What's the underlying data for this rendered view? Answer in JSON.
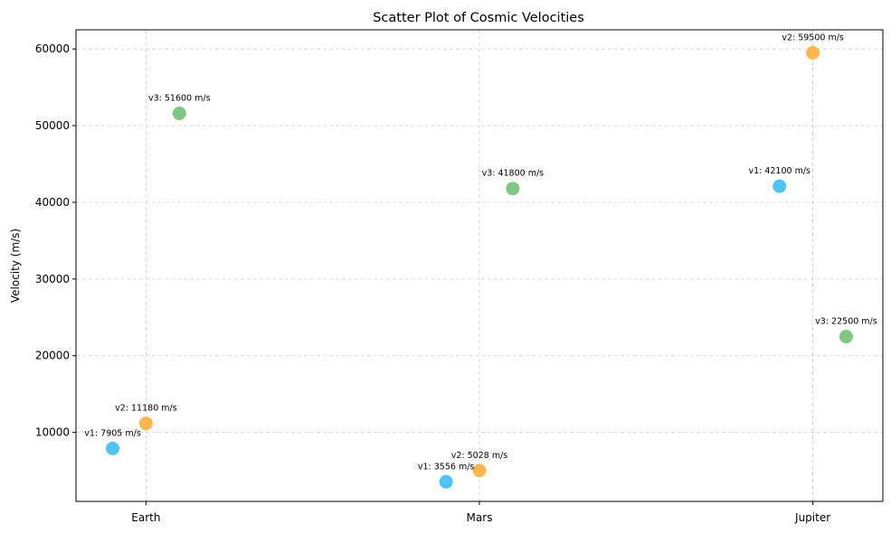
{
  "chart_data": {
    "type": "scatter",
    "title": "Scatter Plot of Cosmic Velocities",
    "xlabel": "",
    "ylabel": "Velocity (m/s)",
    "categories": [
      "Earth",
      "Mars",
      "Jupiter"
    ],
    "ylim": [
      1000,
      62500
    ],
    "yticks": [
      10000,
      20000,
      30000,
      40000,
      50000,
      60000
    ],
    "grid": true,
    "series": [
      {
        "color": "#4fc3f7",
        "offset": -0.1,
        "values": [
          7905,
          3556,
          42100
        ],
        "labels": [
          "v1: 7905 m/s",
          "v1: 3556 m/s",
          "v1: 42100 m/s"
        ]
      },
      {
        "color": "#ffb74d",
        "offset": 0,
        "values": [
          11180,
          5028,
          59500
        ],
        "labels": [
          "v2: 11180 m/s",
          "v2: 5028 m/s",
          "v2: 59500 m/s"
        ]
      },
      {
        "color": "#81c784",
        "offset": 0.1,
        "values": [
          51600,
          41800,
          22500
        ],
        "labels": [
          "v3: 51600 m/s",
          "v3: 41800 m/s",
          "v3: 22500 m/s"
        ]
      }
    ]
  }
}
